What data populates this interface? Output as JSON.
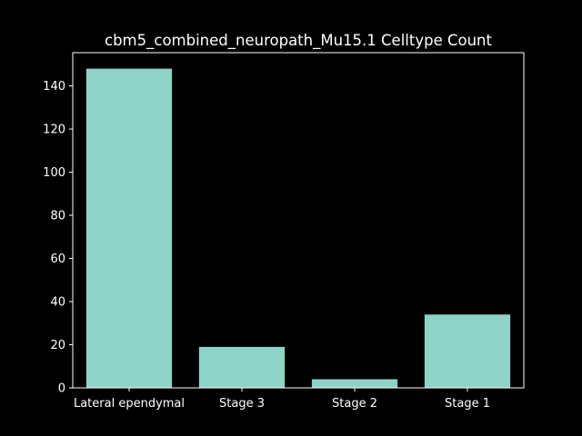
{
  "chart_data": {
    "type": "bar",
    "title": "cbm5_combined_neuropath_Mu15.1 Celltype Count",
    "xlabel": "",
    "ylabel": "",
    "categories": [
      "Lateral ependymal",
      "Stage 3",
      "Stage 2",
      "Stage 1"
    ],
    "values": [
      148,
      19,
      4,
      34
    ],
    "ylim": [
      0,
      155.4
    ],
    "yticks": [
      0,
      20,
      40,
      60,
      80,
      100,
      120,
      140
    ],
    "grid": false,
    "legend": "none",
    "colors": {
      "background": "#000000",
      "bar": "#8dd3c7",
      "axis": "#ffffff",
      "text": "#ffffff"
    }
  }
}
